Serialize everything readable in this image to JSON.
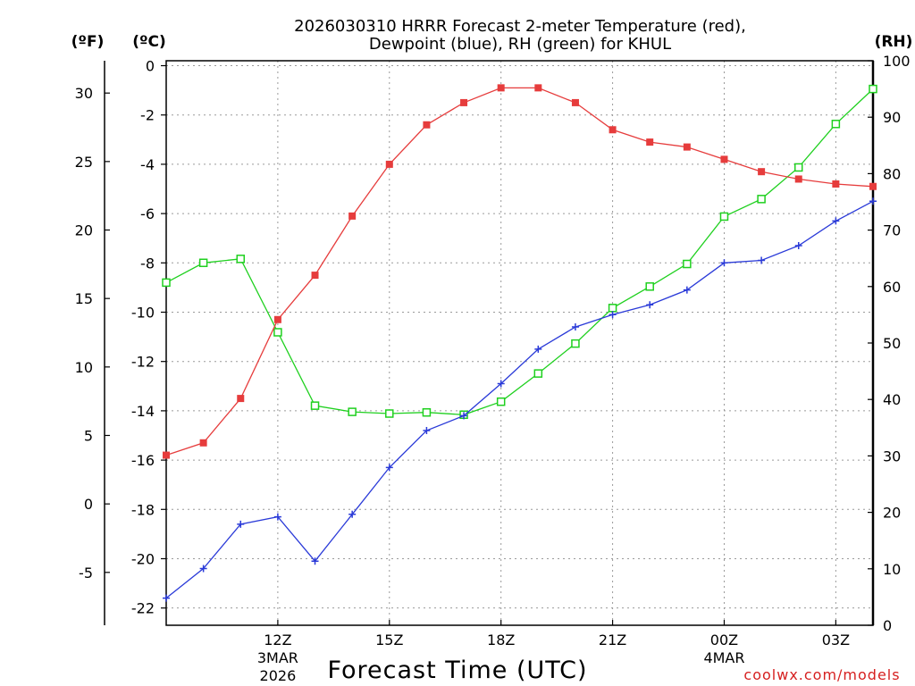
{
  "chart_data": {
    "type": "line",
    "title_line1": "2026030310 HRRR Forecast 2-meter Temperature (red),",
    "title_line2": "Dewpoint (blue), RH (green) for KHUL",
    "xlabel": "Forecast Time (UTC)",
    "credit": "coolwx.com/models",
    "colors": {
      "temperature": "#e63c3c",
      "dewpoint": "#2a3ad8",
      "rh": "#1fd01f",
      "grid": "#9a9a9a"
    },
    "axes": {
      "fahrenheit": {
        "unit_label": "(ºF)",
        "ticks": [
          "30",
          "25",
          "20",
          "15",
          "10",
          "5",
          "0",
          "-5"
        ]
      },
      "celsius": {
        "unit_label": "(ºC)",
        "ylim": [
          -22.7,
          0.2
        ],
        "ticks": [
          "0",
          "-2",
          "-4",
          "-6",
          "-8",
          "-10",
          "-12",
          "-14",
          "-16",
          "-18",
          "-20",
          "-22"
        ]
      },
      "rh": {
        "unit_label": "(RH)",
        "ylim": [
          0,
          100
        ],
        "ticks": [
          "100",
          "90",
          "80",
          "70",
          "60",
          "50",
          "40",
          "30",
          "20",
          "10",
          "0"
        ]
      }
    },
    "x_hours": [
      9,
      10,
      11,
      12,
      13,
      14,
      15,
      16,
      17,
      18,
      19,
      20,
      21,
      22,
      23,
      24,
      25,
      26,
      27,
      28
    ],
    "x_ticks": [
      {
        "hour": 12,
        "label": "12Z",
        "sub1": "3MAR",
        "sub2": "2026"
      },
      {
        "hour": 15,
        "label": "15Z",
        "sub1": "",
        "sub2": ""
      },
      {
        "hour": 18,
        "label": "18Z",
        "sub1": "",
        "sub2": ""
      },
      {
        "hour": 21,
        "label": "21Z",
        "sub1": "",
        "sub2": ""
      },
      {
        "hour": 24,
        "label": "00Z",
        "sub1": "4MAR",
        "sub2": ""
      },
      {
        "hour": 27,
        "label": "03Z",
        "sub1": "",
        "sub2": ""
      }
    ],
    "series": [
      {
        "name": "Temperature (°C)",
        "axis": "celsius",
        "marker": "filled-square",
        "values": [
          -15.8,
          -15.3,
          -13.5,
          -10.3,
          -8.5,
          -6.1,
          -4.0,
          -2.4,
          -1.5,
          -0.9,
          -0.9,
          -1.5,
          -2.6,
          -3.1,
          -3.3,
          -3.8,
          -4.3,
          -4.6,
          -4.8,
          -4.9
        ]
      },
      {
        "name": "Dewpoint (°C)",
        "axis": "celsius",
        "marker": "plus",
        "values": [
          -21.6,
          -20.4,
          -18.6,
          -18.3,
          -20.1,
          -18.2,
          -16.3,
          -14.8,
          -14.2,
          -12.9,
          -11.5,
          -10.6,
          -10.1,
          -9.7,
          -9.1,
          -8.0,
          -7.9,
          -7.3,
          -6.3,
          -5.5
        ]
      },
      {
        "name": "RH (%)",
        "axis": "rh",
        "marker": "open-square",
        "values": [
          60.7,
          64.2,
          64.9,
          51.9,
          38.9,
          37.8,
          37.5,
          37.7,
          37.3,
          39.6,
          44.6,
          49.9,
          56.2,
          60.0,
          64.0,
          72.4,
          75.5,
          81.1,
          88.8,
          95.0
        ]
      }
    ]
  }
}
